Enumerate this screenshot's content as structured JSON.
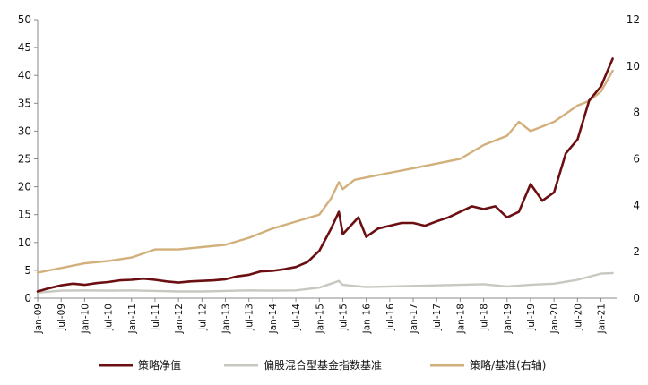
{
  "chart_data": {
    "type": "line",
    "x_ticks": [
      "Jan-09",
      "Jul-09",
      "Jan-10",
      "Jul-10",
      "Jan-11",
      "Jul-11",
      "Jan-12",
      "Jul-12",
      "Jan-13",
      "Jul-13",
      "Jan-14",
      "Jul-14",
      "Jan-15",
      "Jul-15",
      "Jan-16",
      "Jul-16",
      "Jan-17",
      "Jul-17",
      "Jan-18",
      "Jul-18",
      "Jan-19",
      "Jul-19",
      "Jan-20",
      "Jul-20",
      "Jan-21"
    ],
    "y_left": {
      "ylim": [
        0,
        50
      ],
      "ticks": [
        "0",
        "5",
        "10",
        "15",
        "20",
        "25",
        "30",
        "35",
        "40",
        "45",
        "50"
      ]
    },
    "y_right": {
      "ylim": [
        0,
        12
      ],
      "ticks": [
        "0",
        "2",
        "4",
        "6",
        "8",
        "10",
        "12"
      ]
    },
    "legend_position": "bottom",
    "series": [
      {
        "name": "策略净值",
        "axis": "left",
        "color": "#6b0f12",
        "x": [
          "Jan-09",
          "Apr-09",
          "Jul-09",
          "Oct-09",
          "Jan-10",
          "Apr-10",
          "Jul-10",
          "Oct-10",
          "Jan-11",
          "Apr-11",
          "Jul-11",
          "Oct-11",
          "Jan-12",
          "Apr-12",
          "Jul-12",
          "Oct-12",
          "Jan-13",
          "Apr-13",
          "Jul-13",
          "Oct-13",
          "Jan-14",
          "Apr-14",
          "Jul-14",
          "Oct-14",
          "Jan-15",
          "Apr-15",
          "Jun-15",
          "Jul-15",
          "Sep-15",
          "Nov-15",
          "Jan-16",
          "Apr-16",
          "Jul-16",
          "Oct-16",
          "Jan-17",
          "Apr-17",
          "Jul-17",
          "Oct-17",
          "Jan-18",
          "Apr-18",
          "Jul-18",
          "Oct-18",
          "Jan-19",
          "Apr-19",
          "Jul-19",
          "Oct-19",
          "Jan-20",
          "Apr-20",
          "Jul-20",
          "Oct-20",
          "Jan-21",
          "Apr-21"
        ],
        "values": [
          1.2,
          1.8,
          2.3,
          2.6,
          2.4,
          2.7,
          2.9,
          3.2,
          3.3,
          3.5,
          3.3,
          3.0,
          2.8,
          3.0,
          3.1,
          3.2,
          3.4,
          3.9,
          4.2,
          4.8,
          4.9,
          5.2,
          5.6,
          6.5,
          8.5,
          12.5,
          15.5,
          11.5,
          13.0,
          14.5,
          11.0,
          12.5,
          13.0,
          13.5,
          13.5,
          13.0,
          13.8,
          14.5,
          15.5,
          16.5,
          16.0,
          16.5,
          14.5,
          15.5,
          20.5,
          17.5,
          19.0,
          26.0,
          28.5,
          35.5,
          38.0,
          43.0
        ]
      },
      {
        "name": "偏股混合型基金指数基准",
        "axis": "left",
        "color": "#c8c8c0",
        "x": [
          "Jan-09",
          "Jul-09",
          "Jan-10",
          "Jul-10",
          "Jan-11",
          "Jul-11",
          "Jan-12",
          "Jul-12",
          "Jan-13",
          "Jul-13",
          "Jan-14",
          "Jul-14",
          "Jan-15",
          "Apr-15",
          "Jun-15",
          "Jul-15",
          "Jan-16",
          "Jul-16",
          "Jan-17",
          "Jul-17",
          "Jan-18",
          "Jul-18",
          "Jan-19",
          "Jul-19",
          "Jan-20",
          "Jul-20",
          "Jan-21",
          "Apr-21"
        ],
        "values": [
          1.0,
          1.35,
          1.4,
          1.35,
          1.4,
          1.3,
          1.2,
          1.2,
          1.3,
          1.4,
          1.35,
          1.4,
          1.9,
          2.6,
          3.1,
          2.4,
          2.0,
          2.1,
          2.2,
          2.3,
          2.4,
          2.5,
          2.1,
          2.4,
          2.6,
          3.3,
          4.4,
          4.5
        ]
      },
      {
        "name": "策略/基准(右轴)",
        "axis": "right",
        "color": "#d2b07c",
        "x": [
          "Jan-09",
          "Jul-09",
          "Jan-10",
          "Jul-10",
          "Jan-11",
          "Jul-11",
          "Jan-12",
          "Jul-12",
          "Jan-13",
          "Jul-13",
          "Jan-14",
          "Jul-14",
          "Jan-15",
          "Apr-15",
          "Jun-15",
          "Jul-15",
          "Oct-15",
          "Jan-16",
          "Jul-16",
          "Jan-17",
          "Jul-17",
          "Jan-18",
          "Jul-18",
          "Jan-19",
          "Apr-19",
          "Jul-19",
          "Oct-19",
          "Jan-20",
          "Jul-20",
          "Oct-20",
          "Jan-21",
          "Apr-21"
        ],
        "values": [
          1.1,
          1.3,
          1.5,
          1.6,
          1.75,
          2.1,
          2.1,
          2.2,
          2.3,
          2.6,
          3.0,
          3.3,
          3.6,
          4.3,
          5.0,
          4.7,
          5.1,
          5.2,
          5.4,
          5.6,
          5.8,
          6.0,
          6.6,
          7.0,
          7.6,
          7.2,
          7.4,
          7.6,
          8.3,
          8.5,
          8.9,
          9.8
        ]
      }
    ]
  }
}
